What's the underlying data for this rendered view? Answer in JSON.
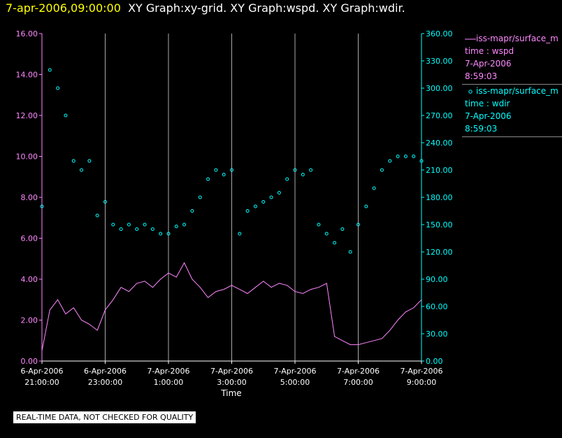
{
  "header": {
    "date": "7-apr-2006,09:00:00",
    "title": "XY Graph:xy-grid.  XY Graph:wspd.  XY Graph:wdir."
  },
  "legend": [
    {
      "source": "iss-mapr/surface_m",
      "label": "time : wspd",
      "date": "7-Apr-2006",
      "time": "8:59:03",
      "color": "#ff88ff",
      "marker": "line"
    },
    {
      "source": "iss-mapr/surface_m",
      "label": "time : wdir",
      "date": "7-Apr-2006",
      "time": "8:59:03",
      "color": "#00ffff",
      "marker": "circle"
    }
  ],
  "footer": "REAL-TIME DATA, NOT CHECKED FOR QUALITY",
  "chart_data": {
    "type": "scatter",
    "xlabel": "Time",
    "x_range_hours": [
      -3.0,
      9.0
    ],
    "x_ticks": [
      {
        "date": "6-Apr-2006",
        "time": "21:00:00",
        "h": -3
      },
      {
        "date": "6-Apr-2006",
        "time": "23:00:00",
        "h": -1
      },
      {
        "date": "7-Apr-2006",
        "time": "1:00:00",
        "h": 1
      },
      {
        "date": "7-Apr-2006",
        "time": "3:00:00",
        "h": 3
      },
      {
        "date": "7-Apr-2006",
        "time": "5:00:00",
        "h": 5
      },
      {
        "date": "7-Apr-2006",
        "time": "7:00:00",
        "h": 7
      },
      {
        "date": "7-Apr-2006",
        "time": "9:00:00",
        "h": 9
      }
    ],
    "y_left": {
      "range": [
        0,
        16
      ],
      "ticks": [
        "0.00",
        "2.00",
        "4.00",
        "6.00",
        "8.00",
        "10.00",
        "12.00",
        "14.00",
        "16.00"
      ],
      "color": "#ff88ff"
    },
    "y_right": {
      "range": [
        0,
        360
      ],
      "ticks": [
        "0.00",
        "30.00",
        "60.00",
        "90.00",
        "120.00",
        "150.00",
        "180.00",
        "210.00",
        "240.00",
        "270.00",
        "300.00",
        "330.00",
        "360.00"
      ],
      "color": "#00ffff"
    },
    "grid": "vertical",
    "series": [
      {
        "name": "time : wspd",
        "axis": "left",
        "style": "line",
        "color": "#ff88ff",
        "x": [
          -3.0,
          -2.75,
          -2.5,
          -2.25,
          -2.0,
          -1.75,
          -1.5,
          -1.25,
          -1.0,
          -0.75,
          -0.5,
          -0.25,
          0.0,
          0.25,
          0.5,
          0.75,
          1.0,
          1.25,
          1.5,
          1.75,
          2.0,
          2.25,
          2.5,
          2.75,
          3.0,
          3.25,
          3.5,
          3.75,
          4.0,
          4.25,
          4.5,
          4.75,
          5.0,
          5.25,
          5.5,
          5.75,
          6.0,
          6.25,
          6.5,
          6.75,
          7.0,
          7.25,
          7.5,
          7.75,
          8.0,
          8.25,
          8.5,
          8.75,
          9.0
        ],
        "y": [
          0.5,
          2.5,
          3.0,
          2.3,
          2.6,
          2.0,
          1.8,
          1.5,
          2.5,
          3.0,
          3.6,
          3.4,
          3.8,
          3.9,
          3.6,
          4.0,
          4.3,
          4.1,
          4.8,
          4.0,
          3.6,
          3.1,
          3.4,
          3.5,
          3.7,
          3.5,
          3.3,
          3.6,
          3.9,
          3.6,
          3.8,
          3.7,
          3.4,
          3.3,
          3.5,
          3.6,
          3.8,
          1.2,
          1.0,
          0.8,
          0.8,
          0.9,
          1.0,
          1.1,
          1.5,
          2.0,
          2.4,
          2.6,
          3.0
        ]
      },
      {
        "name": "time : wdir",
        "axis": "right",
        "style": "markers",
        "color": "#00ffff",
        "x": [
          -3.0,
          -2.75,
          -2.5,
          -2.25,
          -2.0,
          -1.75,
          -1.5,
          -1.25,
          -1.0,
          -0.75,
          -0.5,
          -0.25,
          0.0,
          0.25,
          0.5,
          0.75,
          1.0,
          1.25,
          1.5,
          1.75,
          2.0,
          2.25,
          2.5,
          2.75,
          3.0,
          3.25,
          3.5,
          3.75,
          4.0,
          4.25,
          4.5,
          4.75,
          5.0,
          5.25,
          5.5,
          5.75,
          6.0,
          6.25,
          6.5,
          6.75,
          7.0,
          7.25,
          7.5,
          7.75,
          8.0,
          8.25,
          8.5,
          8.75,
          9.0
        ],
        "y": [
          170,
          320,
          300,
          270,
          220,
          210,
          220,
          160,
          175,
          150,
          145,
          150,
          145,
          150,
          145,
          140,
          140,
          148,
          150,
          165,
          180,
          200,
          210,
          205,
          210,
          140,
          165,
          170,
          175,
          180,
          185,
          200,
          210,
          205,
          210,
          150,
          140,
          130,
          145,
          120,
          150,
          170,
          190,
          210,
          220,
          225,
          225,
          225,
          220
        ]
      }
    ]
  }
}
